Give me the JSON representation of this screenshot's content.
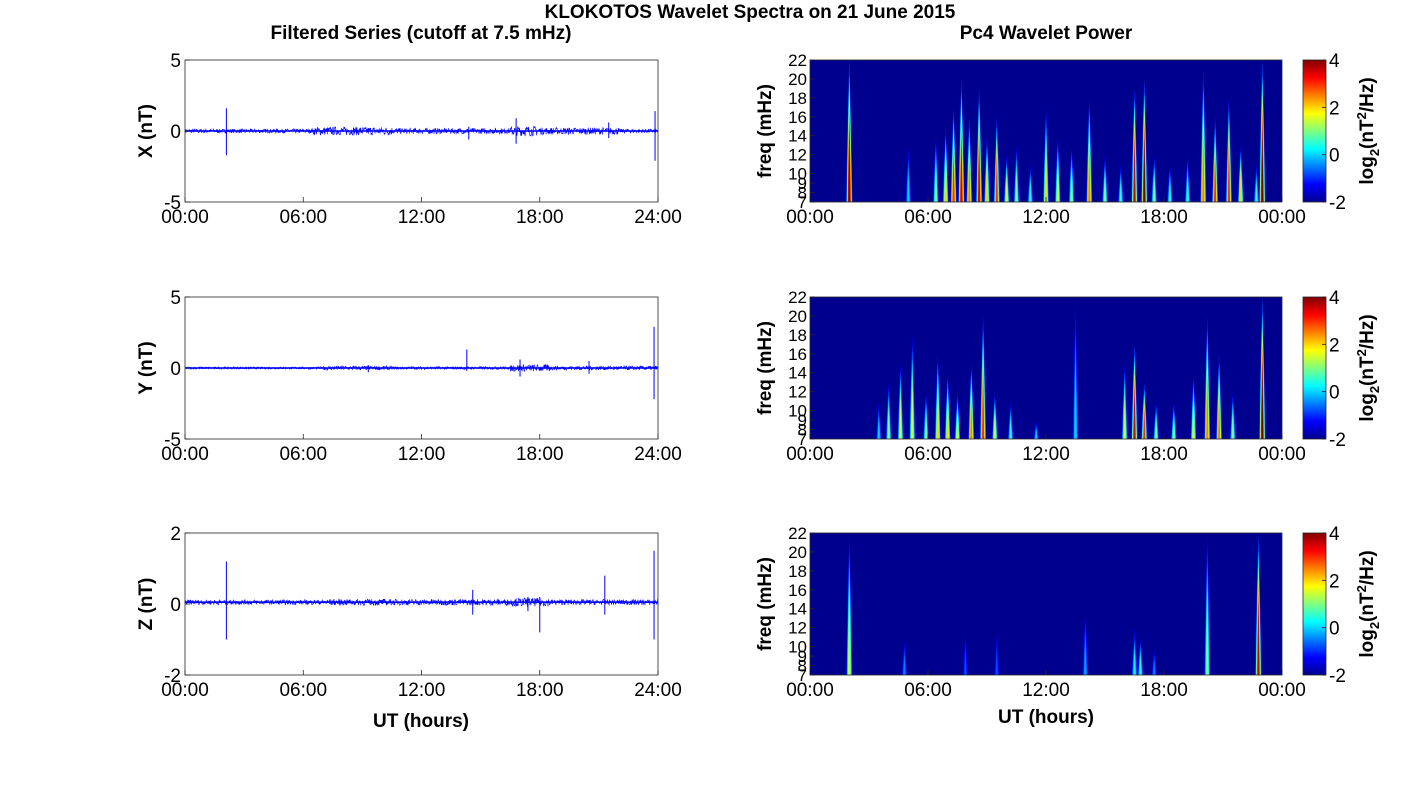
{
  "figure": {
    "title": "KLOKOTOS Wavelet Spectra on 21 June 2015",
    "left_title": "Filtered Series (cutoff at 7.5 mHz)",
    "right_title": "Pc4 Wavelet Power",
    "xlabel": "UT (hours)"
  },
  "colors": {
    "series_line": "#0000ff",
    "spectrogram_background": "#00008f",
    "colormap": "jet"
  },
  "chart_data": [
    {
      "type": "line",
      "name": "filtered-x",
      "ylabel": "X (nT)",
      "xlim": [
        0,
        24
      ],
      "ylim": [
        -5,
        5
      ],
      "xticks": [
        "00:00",
        "06:00",
        "12:00",
        "18:00",
        "24:00"
      ],
      "yticks": [
        "-5",
        "0",
        "5"
      ],
      "baseline": 0.0,
      "noise_segments": [
        {
          "x": [
            0,
            6.5
          ],
          "amp": 0.15
        },
        {
          "x": [
            6.5,
            10.5
          ],
          "amp": 0.3
        },
        {
          "x": [
            10.5,
            16.5
          ],
          "amp": 0.2
        },
        {
          "x": [
            16.5,
            18
          ],
          "amp": 0.35
        },
        {
          "x": [
            18,
            22
          ],
          "amp": 0.25
        },
        {
          "x": [
            22,
            24
          ],
          "amp": 0.15
        }
      ],
      "spikes": [
        {
          "x": 2.1,
          "min": -1.7,
          "max": 1.6
        },
        {
          "x": 14.4,
          "min": -0.6,
          "max": 0.3
        },
        {
          "x": 16.8,
          "min": -0.9,
          "max": 0.9
        },
        {
          "x": 21.5,
          "min": -0.5,
          "max": 0.6
        },
        {
          "x": 23.85,
          "min": -2.1,
          "max": 1.4
        }
      ]
    },
    {
      "type": "line",
      "name": "filtered-y",
      "ylabel": "Y (nT)",
      "xlim": [
        0,
        24
      ],
      "ylim": [
        -5,
        5
      ],
      "xticks": [
        "00:00",
        "06:00",
        "12:00",
        "18:00",
        "24:00"
      ],
      "yticks": [
        "-5",
        "0",
        "5"
      ],
      "baseline": 0.0,
      "noise_segments": [
        {
          "x": [
            0,
            7
          ],
          "amp": 0.08
        },
        {
          "x": [
            7,
            10.5
          ],
          "amp": 0.15
        },
        {
          "x": [
            10.5,
            16.5
          ],
          "amp": 0.1
        },
        {
          "x": [
            16.5,
            18.5
          ],
          "amp": 0.25
        },
        {
          "x": [
            18.5,
            24
          ],
          "amp": 0.15
        }
      ],
      "spikes": [
        {
          "x": 14.3,
          "min": -0.2,
          "max": 1.3
        },
        {
          "x": 9.3,
          "min": -0.3,
          "max": 0.2
        },
        {
          "x": 17.0,
          "min": -0.6,
          "max": 0.6
        },
        {
          "x": 20.5,
          "min": -0.4,
          "max": 0.5
        },
        {
          "x": 23.8,
          "min": -2.2,
          "max": 2.9
        }
      ]
    },
    {
      "type": "line",
      "name": "filtered-z",
      "ylabel": "Z (nT)",
      "xlim": [
        0,
        24
      ],
      "ylim": [
        -2,
        2
      ],
      "xticks": [
        "00:00",
        "06:00",
        "12:00",
        "18:00",
        "24:00"
      ],
      "yticks": [
        "-2",
        "0",
        "2"
      ],
      "baseline": 0.05,
      "noise_segments": [
        {
          "x": [
            0,
            7
          ],
          "amp": 0.07
        },
        {
          "x": [
            7,
            10.5
          ],
          "amp": 0.09
        },
        {
          "x": [
            10.5,
            16.5
          ],
          "amp": 0.09
        },
        {
          "x": [
            16.5,
            18.5
          ],
          "amp": 0.12
        },
        {
          "x": [
            18.5,
            24
          ],
          "amp": 0.08
        }
      ],
      "spikes": [
        {
          "x": 2.1,
          "min": -1.0,
          "max": 1.2
        },
        {
          "x": 14.6,
          "min": -0.3,
          "max": 0.4
        },
        {
          "x": 17.4,
          "min": -0.2,
          "max": 0.2
        },
        {
          "x": 18.0,
          "min": -0.8,
          "max": 0.2
        },
        {
          "x": 21.3,
          "min": -0.3,
          "max": 0.8
        },
        {
          "x": 23.8,
          "min": -1.0,
          "max": 1.5
        }
      ]
    },
    {
      "type": "heatmap",
      "name": "wavelet-x",
      "ylabel": "freq (mHz)",
      "xlim": [
        0,
        24
      ],
      "ylim": [
        7,
        22
      ],
      "xticks": [
        "00:00",
        "06:00",
        "12:00",
        "18:00",
        "00:00"
      ],
      "yticks": [
        "7",
        "8",
        "9",
        "10",
        "12",
        "14",
        "16",
        "18",
        "20",
        "22"
      ],
      "colorbar": {
        "label": "log2(nT2/Hz)",
        "ticks": [
          "4",
          "2",
          "0",
          "-2"
        ],
        "range": [
          -2,
          4
        ]
      },
      "bursts": [
        {
          "x": 2.0,
          "top": 22,
          "peak": 4.0
        },
        {
          "x": 5.0,
          "top": 13,
          "peak": 0.0
        },
        {
          "x": 6.4,
          "top": 14,
          "peak": 1.0
        },
        {
          "x": 6.9,
          "top": 15,
          "peak": 2.0
        },
        {
          "x": 7.3,
          "top": 17,
          "peak": 3.0
        },
        {
          "x": 7.7,
          "top": 20,
          "peak": 3.5
        },
        {
          "x": 8.1,
          "top": 16,
          "peak": 2.5
        },
        {
          "x": 8.6,
          "top": 19,
          "peak": 3.5
        },
        {
          "x": 9.0,
          "top": 14,
          "peak": 2.0
        },
        {
          "x": 9.5,
          "top": 16,
          "peak": 3.0
        },
        {
          "x": 10.0,
          "top": 12,
          "peak": 1.5
        },
        {
          "x": 10.5,
          "top": 13,
          "peak": 1.0
        },
        {
          "x": 11.2,
          "top": 11,
          "peak": 0.5
        },
        {
          "x": 12.0,
          "top": 17,
          "peak": 2.0
        },
        {
          "x": 12.6,
          "top": 14,
          "peak": 1.5
        },
        {
          "x": 13.3,
          "top": 13,
          "peak": 1.0
        },
        {
          "x": 14.2,
          "top": 18,
          "peak": 2.5
        },
        {
          "x": 15.0,
          "top": 12,
          "peak": 1.0
        },
        {
          "x": 15.8,
          "top": 11,
          "peak": 0.5
        },
        {
          "x": 16.5,
          "top": 19,
          "peak": 3.5
        },
        {
          "x": 17.0,
          "top": 20,
          "peak": 4.0
        },
        {
          "x": 17.5,
          "top": 12,
          "peak": 1.0
        },
        {
          "x": 18.3,
          "top": 11,
          "peak": 0.5
        },
        {
          "x": 19.2,
          "top": 12,
          "peak": 0.5
        },
        {
          "x": 20.0,
          "top": 21,
          "peak": 2.5
        },
        {
          "x": 20.6,
          "top": 16,
          "peak": 3.0
        },
        {
          "x": 21.3,
          "top": 18,
          "peak": 3.0
        },
        {
          "x": 21.9,
          "top": 13,
          "peak": 2.0
        },
        {
          "x": 22.7,
          "top": 11,
          "peak": 0.5
        },
        {
          "x": 23.0,
          "top": 22,
          "peak": 4.0
        }
      ]
    },
    {
      "type": "heatmap",
      "name": "wavelet-y",
      "ylabel": "freq (mHz)",
      "xlim": [
        0,
        24
      ],
      "ylim": [
        7,
        22
      ],
      "xticks": [
        "00:00",
        "06:00",
        "12:00",
        "18:00",
        "00:00"
      ],
      "yticks": [
        "7",
        "8",
        "9",
        "10",
        "12",
        "14",
        "16",
        "18",
        "20",
        "22"
      ],
      "colorbar": {
        "label": "log2(nT2/Hz)",
        "ticks": [
          "4",
          "2",
          "0",
          "-2"
        ],
        "range": [
          -2,
          4
        ]
      },
      "bursts": [
        {
          "x": 3.5,
          "top": 11,
          "peak": 0.0
        },
        {
          "x": 4.0,
          "top": 13,
          "peak": 1.0
        },
        {
          "x": 4.6,
          "top": 15,
          "peak": 1.5
        },
        {
          "x": 5.2,
          "top": 18,
          "peak": 1.5
        },
        {
          "x": 5.9,
          "top": 12,
          "peak": 1.0
        },
        {
          "x": 6.5,
          "top": 16,
          "peak": 2.0
        },
        {
          "x": 7.0,
          "top": 14,
          "peak": 2.0
        },
        {
          "x": 7.5,
          "top": 12,
          "peak": 1.5
        },
        {
          "x": 8.2,
          "top": 15,
          "peak": 2.5
        },
        {
          "x": 8.8,
          "top": 20,
          "peak": 3.0
        },
        {
          "x": 9.4,
          "top": 12,
          "peak": 1.5
        },
        {
          "x": 10.2,
          "top": 11,
          "peak": 0.5
        },
        {
          "x": 11.5,
          "top": 9,
          "peak": 0.0
        },
        {
          "x": 13.5,
          "top": 22,
          "peak": 0.0
        },
        {
          "x": 16.0,
          "top": 15,
          "peak": 1.5
        },
        {
          "x": 16.5,
          "top": 17,
          "peak": 3.5
        },
        {
          "x": 17.0,
          "top": 13,
          "peak": 3.0
        },
        {
          "x": 17.6,
          "top": 11,
          "peak": 1.0
        },
        {
          "x": 18.5,
          "top": 11,
          "peak": 1.0
        },
        {
          "x": 19.5,
          "top": 14,
          "peak": 1.5
        },
        {
          "x": 20.2,
          "top": 20,
          "peak": 2.5
        },
        {
          "x": 20.8,
          "top": 16,
          "peak": 2.5
        },
        {
          "x": 21.5,
          "top": 12,
          "peak": 1.0
        },
        {
          "x": 23.0,
          "top": 22,
          "peak": 4.0
        }
      ]
    },
    {
      "type": "heatmap",
      "name": "wavelet-z",
      "ylabel": "freq (mHz)",
      "xlim": [
        0,
        24
      ],
      "ylim": [
        7,
        22
      ],
      "xticks": [
        "00:00",
        "06:00",
        "12:00",
        "18:00",
        "00:00"
      ],
      "yticks": [
        "7",
        "8",
        "9",
        "10",
        "12",
        "14",
        "16",
        "18",
        "20",
        "22"
      ],
      "colorbar": {
        "label": "log2(nT2/Hz)",
        "ticks": [
          "4",
          "2",
          "0",
          "-2"
        ],
        "range": [
          -2,
          4
        ]
      },
      "bursts": [
        {
          "x": 2.0,
          "top": 22,
          "peak": 1.5
        },
        {
          "x": 4.8,
          "top": 11,
          "peak": -0.5
        },
        {
          "x": 7.9,
          "top": 12,
          "peak": -0.8
        },
        {
          "x": 9.5,
          "top": 12,
          "peak": -0.8
        },
        {
          "x": 14.0,
          "top": 14,
          "peak": -0.3
        },
        {
          "x": 16.5,
          "top": 12,
          "peak": 0.3
        },
        {
          "x": 16.8,
          "top": 11,
          "peak": 0.5
        },
        {
          "x": 17.5,
          "top": 10,
          "peak": -0.5
        },
        {
          "x": 20.2,
          "top": 22,
          "peak": 1.0
        },
        {
          "x": 22.8,
          "top": 22,
          "peak": 3.5
        }
      ]
    }
  ]
}
